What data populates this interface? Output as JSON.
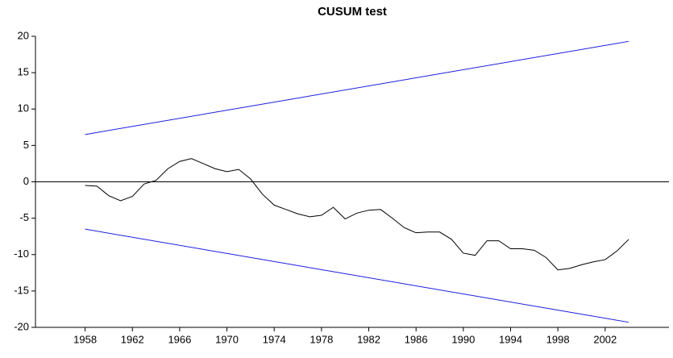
{
  "chart_data": {
    "type": "line",
    "title": "CUSUM test",
    "x": [
      1958,
      1959,
      1960,
      1961,
      1962,
      1963,
      1964,
      1965,
      1966,
      1967,
      1968,
      1969,
      1970,
      1971,
      1972,
      1973,
      1974,
      1975,
      1976,
      1977,
      1978,
      1979,
      1980,
      1981,
      1982,
      1983,
      1984,
      1985,
      1986,
      1987,
      1988,
      1989,
      1990,
      1991,
      1992,
      1993,
      1994,
      1995,
      1996,
      1997,
      1998,
      1999,
      2000,
      2001,
      2002,
      2003,
      2004
    ],
    "series": [
      {
        "color": "#000000",
        "values": [
          -0.5,
          -0.6,
          -1.9,
          -2.6,
          -2.0,
          -0.3,
          0.2,
          1.8,
          2.8,
          3.2,
          2.5,
          1.8,
          1.4,
          1.7,
          0.4,
          -1.7,
          -3.2,
          -3.8,
          -4.4,
          -4.8,
          -4.6,
          -3.5,
          -5.1,
          -4.3,
          -3.9,
          -3.8,
          -5.0,
          -6.3,
          -7.0,
          -6.9,
          -6.9,
          -7.9,
          -9.8,
          -10.1,
          -8.1,
          -8.1,
          -9.2,
          -9.2,
          -9.4,
          -10.4,
          -12.1,
          -11.9,
          -11.4,
          -11.0,
          -10.7,
          -9.5,
          -7.9
        ]
      },
      {
        "color": "#1c1ce0",
        "x": [
          1958,
          2004
        ],
        "values": [
          6.5,
          19.3
        ]
      },
      {
        "color": "#1c1ce0",
        "x": [
          1958,
          2004
        ],
        "values": [
          -6.5,
          -19.3
        ]
      }
    ],
    "hline": 0,
    "xlim": [
      1953.8,
      2007.4
    ],
    "xticks": [
      1958,
      1962,
      1966,
      1970,
      1974,
      1978,
      1982,
      1986,
      1990,
      1994,
      1998,
      2002
    ],
    "ylim": [
      -20,
      20
    ],
    "yticks": [
      -20,
      -15,
      -10,
      -5,
      0,
      5,
      10,
      15,
      20
    ]
  }
}
